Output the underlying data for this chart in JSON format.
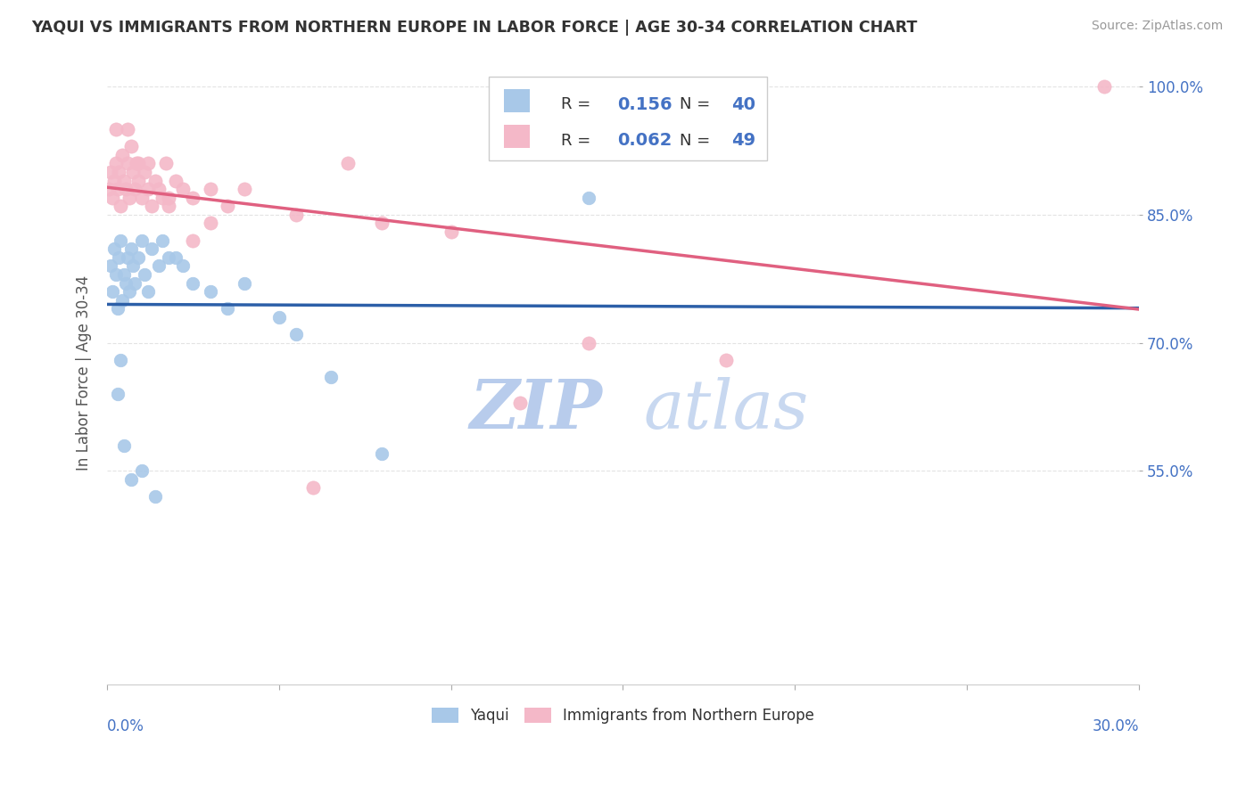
{
  "title": "YAQUI VS IMMIGRANTS FROM NORTHERN EUROPE IN LABOR FORCE | AGE 30-34 CORRELATION CHART",
  "source": "Source: ZipAtlas.com",
  "ylabel": "In Labor Force | Age 30-34",
  "xmin": 0.0,
  "xmax": 30.0,
  "ymin": 30.0,
  "ymax": 103.0,
  "watermark_zip": "ZIP",
  "watermark_atlas": "atlas",
  "blue_color": "#a8c8e8",
  "pink_color": "#f4b8c8",
  "blue_line_color": "#2c5fa8",
  "pink_line_color": "#e06080",
  "legend_blue_label": "Yaqui",
  "legend_pink_label": "Immigrants from Northern Europe",
  "R_blue": "0.156",
  "N_blue": "40",
  "R_pink": "0.062",
  "N_pink": "49",
  "background_color": "#ffffff",
  "grid_color": "#dddddd",
  "title_color": "#333333",
  "axis_label_color": "#4472c4",
  "watermark_color": "#ccddf0",
  "blue_scatter_x": [
    0.1,
    0.15,
    0.2,
    0.25,
    0.3,
    0.35,
    0.4,
    0.45,
    0.5,
    0.55,
    0.6,
    0.65,
    0.7,
    0.75,
    0.8,
    0.9,
    1.0,
    1.1,
    1.2,
    1.3,
    1.5,
    1.6,
    1.8,
    2.0,
    2.2,
    2.5,
    3.0,
    3.5,
    4.0,
    5.0,
    5.5,
    6.5,
    8.0,
    14.0,
    0.3,
    0.4,
    0.5,
    0.7,
    1.0,
    1.4
  ],
  "blue_scatter_y": [
    79.0,
    76.0,
    81.0,
    78.0,
    74.0,
    80.0,
    82.0,
    75.0,
    78.0,
    77.0,
    80.0,
    76.0,
    81.0,
    79.0,
    77.0,
    80.0,
    82.0,
    78.0,
    76.0,
    81.0,
    79.0,
    82.0,
    80.0,
    80.0,
    79.0,
    77.0,
    76.0,
    74.0,
    77.0,
    73.0,
    71.0,
    66.0,
    57.0,
    87.0,
    64.0,
    68.0,
    58.0,
    54.0,
    55.0,
    52.0
  ],
  "pink_scatter_x": [
    0.05,
    0.1,
    0.15,
    0.2,
    0.25,
    0.3,
    0.35,
    0.4,
    0.45,
    0.5,
    0.55,
    0.6,
    0.65,
    0.7,
    0.75,
    0.8,
    0.85,
    0.9,
    1.0,
    1.1,
    1.2,
    1.3,
    1.4,
    1.5,
    1.6,
    1.7,
    1.8,
    2.0,
    2.2,
    2.5,
    3.0,
    3.5,
    4.0,
    5.5,
    7.0,
    8.0,
    10.0,
    12.0,
    14.0,
    18.0,
    0.25,
    0.6,
    0.9,
    1.2,
    1.8,
    2.5,
    3.0,
    6.0,
    29.0
  ],
  "pink_scatter_y": [
    88.0,
    90.0,
    87.0,
    89.0,
    91.0,
    88.0,
    90.0,
    86.0,
    92.0,
    89.0,
    88.0,
    91.0,
    87.0,
    93.0,
    90.0,
    88.0,
    91.0,
    89.0,
    87.0,
    90.0,
    88.0,
    86.0,
    89.0,
    88.0,
    87.0,
    91.0,
    86.0,
    89.0,
    88.0,
    87.0,
    84.0,
    86.0,
    88.0,
    85.0,
    91.0,
    84.0,
    83.0,
    63.0,
    70.0,
    68.0,
    95.0,
    95.0,
    91.0,
    91.0,
    87.0,
    82.0,
    88.0,
    53.0,
    100.0
  ]
}
